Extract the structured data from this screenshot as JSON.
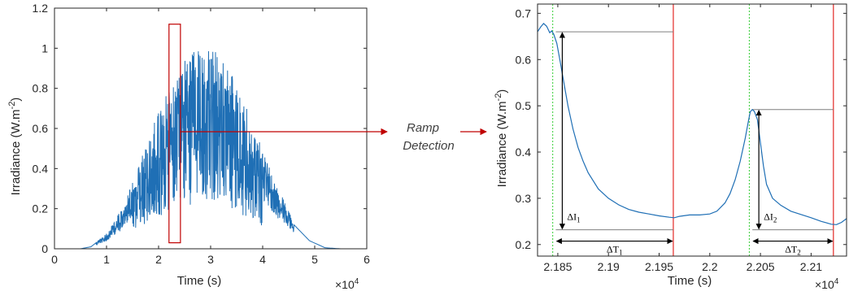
{
  "colors": {
    "line": "#1f6fb5",
    "axis": "#262626",
    "red": "#c00000",
    "red_vertical": "#e53935",
    "green_dotted": "#33cc33",
    "guide": "#7f7f7f",
    "arrow": "#000000"
  },
  "flow": {
    "ramp_label_line1": "Ramp",
    "ramp_label_line2": "Detection"
  },
  "chart_data": [
    {
      "type": "line",
      "xlabel": "Time (s)",
      "ylabel_main": "Irradiance (W.m",
      "ylabel_sup": "-2",
      "ylabel_close": ")",
      "x_exponent_base": "×10",
      "x_exponent_power": "4",
      "xlim": [
        0,
        6
      ],
      "ylim": [
        0,
        1.2
      ],
      "xticks": [
        0,
        1,
        2,
        3,
        4,
        5,
        6
      ],
      "xtick_labels": [
        "0",
        "1",
        "2",
        "3",
        "4",
        "5",
        "6"
      ],
      "yticks": [
        0,
        0.2,
        0.4,
        0.6,
        0.8,
        1.0,
        1.2
      ],
      "ytick_labels": [
        "0",
        "0.2",
        "0.4",
        "0.6",
        "0.8",
        "1",
        "1.2"
      ],
      "series": [
        {
          "x_range": [
            0,
            6
          ],
          "envelope_points": [
            [
              0,
              0
            ],
            [
              0.5,
              0
            ],
            [
              0.7,
              0.01
            ],
            [
              1.0,
              0.07
            ],
            [
              1.3,
              0.18
            ],
            [
              1.6,
              0.36
            ],
            [
              1.9,
              0.55
            ],
            [
              2.2,
              0.72
            ],
            [
              2.5,
              0.85
            ],
            [
              2.8,
              0.9
            ],
            [
              3.1,
              0.88
            ],
            [
              3.4,
              0.78
            ],
            [
              3.7,
              0.62
            ],
            [
              4.0,
              0.44
            ],
            [
              4.3,
              0.27
            ],
            [
              4.6,
              0.12
            ],
            [
              4.9,
              0.04
            ],
            [
              5.2,
              0.005
            ],
            [
              5.5,
              0
            ],
            [
              6,
              0
            ]
          ]
        }
      ],
      "highlight_box": {
        "x": [
          2.2,
          2.42
        ],
        "y": [
          0.03,
          1.12
        ]
      }
    },
    {
      "type": "line",
      "xlabel": "Time (s)",
      "ylabel_main": "Irradiance (W.m",
      "ylabel_sup": "-2",
      "ylabel_close": ")",
      "x_exponent_base": "×10",
      "x_exponent_power": "4",
      "xlim": [
        2.183,
        2.2135
      ],
      "ylim": [
        0.175,
        0.72
      ],
      "xticks": [
        2.185,
        2.19,
        2.195,
        2.2,
        2.205,
        2.21
      ],
      "xtick_labels": [
        "2.185",
        "2.19",
        "2.195",
        "2.2",
        "2.205",
        "2.21"
      ],
      "yticks": [
        0.2,
        0.3,
        0.4,
        0.5,
        0.6,
        0.7
      ],
      "ytick_labels": [
        "0.2",
        "0.3",
        "0.4",
        "0.5",
        "0.6",
        "0.7"
      ],
      "series": [
        {
          "points": [
            [
              2.183,
              0.66
            ],
            [
              2.1833,
              0.67
            ],
            [
              2.1836,
              0.678
            ],
            [
              2.1839,
              0.672
            ],
            [
              2.1842,
              0.658
            ],
            [
              2.1844,
              0.662
            ],
            [
              2.1846,
              0.655
            ],
            [
              2.1849,
              0.635
            ],
            [
              2.1852,
              0.6
            ],
            [
              2.1856,
              0.55
            ],
            [
              2.186,
              0.5
            ],
            [
              2.1865,
              0.45
            ],
            [
              2.187,
              0.41
            ],
            [
              2.1875,
              0.38
            ],
            [
              2.188,
              0.355
            ],
            [
              2.189,
              0.32
            ],
            [
              2.19,
              0.3
            ],
            [
              2.191,
              0.286
            ],
            [
              2.192,
              0.276
            ],
            [
              2.193,
              0.27
            ],
            [
              2.194,
              0.266
            ],
            [
              2.195,
              0.262
            ],
            [
              2.196,
              0.259
            ],
            [
              2.1965,
              0.258
            ],
            [
              2.197,
              0.261
            ],
            [
              2.198,
              0.264
            ],
            [
              2.199,
              0.264
            ],
            [
              2.2,
              0.266
            ],
            [
              2.2007,
              0.272
            ],
            [
              2.2015,
              0.29
            ],
            [
              2.202,
              0.31
            ],
            [
              2.2025,
              0.34
            ],
            [
              2.203,
              0.38
            ],
            [
              2.2035,
              0.43
            ],
            [
              2.2038,
              0.465
            ],
            [
              2.204,
              0.487
            ],
            [
              2.2042,
              0.492
            ],
            [
              2.2044,
              0.488
            ],
            [
              2.2047,
              0.47
            ],
            [
              2.205,
              0.42
            ],
            [
              2.2053,
              0.37
            ],
            [
              2.2056,
              0.33
            ],
            [
              2.2062,
              0.3
            ],
            [
              2.207,
              0.285
            ],
            [
              2.208,
              0.272
            ],
            [
              2.209,
              0.265
            ],
            [
              2.21,
              0.258
            ],
            [
              2.211,
              0.25
            ],
            [
              2.212,
              0.244
            ],
            [
              2.2125,
              0.243
            ],
            [
              2.213,
              0.248
            ],
            [
              2.2135,
              0.256
            ]
          ]
        }
      ],
      "ramps": [
        {
          "delta_i_base": "ΔI",
          "delta_i_sub": "1",
          "delta_t_base": "ΔT",
          "delta_t_sub": "1",
          "t_start": 2.1848,
          "t_end": 2.1964,
          "i_high": 0.66,
          "i_low": 0.232,
          "green_line_x": 2.1845
        },
        {
          "delta_i_base": "ΔI",
          "delta_i_sub": "2",
          "delta_t_base": "ΔT",
          "delta_t_sub": "2",
          "t_start": 2.2042,
          "t_end": 2.2122,
          "i_high": 0.492,
          "i_low": 0.232,
          "green_line_x": 2.2039
        }
      ]
    }
  ]
}
